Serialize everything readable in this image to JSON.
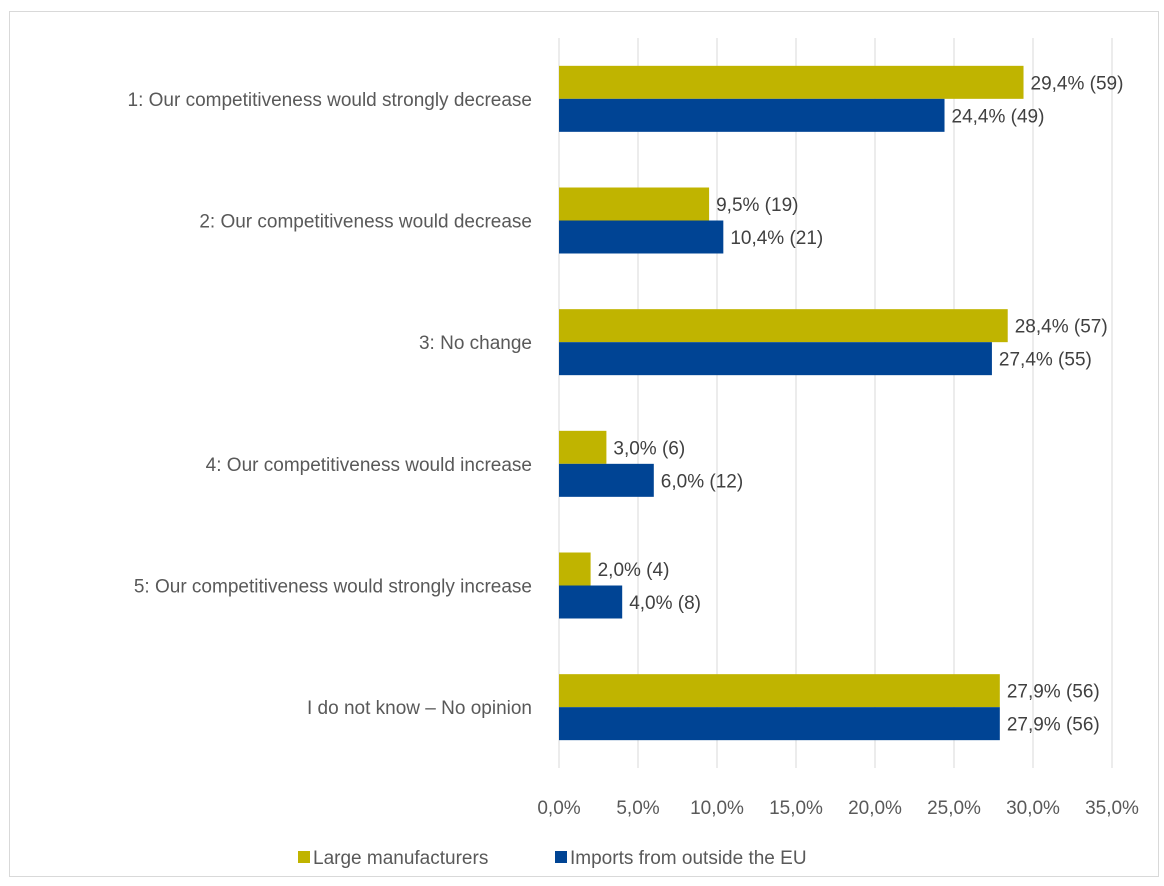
{
  "colors": {
    "large_manufacturers": "#c0b400",
    "imports": "#004494",
    "grid": "#d9d9d9"
  },
  "chart_data": {
    "type": "bar",
    "orientation": "horizontal",
    "categories": [
      "1: Our competitiveness would strongly decrease",
      "2: Our competitiveness would decrease",
      "3: No change",
      "4: Our competitiveness would increase",
      "5: Our competitiveness would strongly increase",
      "I do not know – No opinion"
    ],
    "series": [
      {
        "name": "Large manufacturers",
        "values": [
          29.4,
          9.5,
          28.4,
          3.0,
          2.0,
          27.9
        ],
        "labels": [
          "29,4% (59)",
          "9,5% (19)",
          "28,4% (57)",
          "3,0% (6)",
          "2,0% (4)",
          "27,9% (56)"
        ]
      },
      {
        "name": "Imports from outside the EU",
        "values": [
          24.4,
          10.4,
          27.4,
          6.0,
          4.0,
          27.9
        ],
        "labels": [
          "24,4% (49)",
          "10,4% (21)",
          "27,4% (55)",
          "6,0% (12)",
          "4,0% (8)",
          "27,9% (56)"
        ]
      }
    ],
    "xlim": [
      0,
      35
    ],
    "xticks": [
      "0,0%",
      "5,0%",
      "10,0%",
      "15,0%",
      "20,0%",
      "25,0%",
      "30,0%",
      "35,0%"
    ],
    "grid": "vertical",
    "legend": "bottom"
  }
}
